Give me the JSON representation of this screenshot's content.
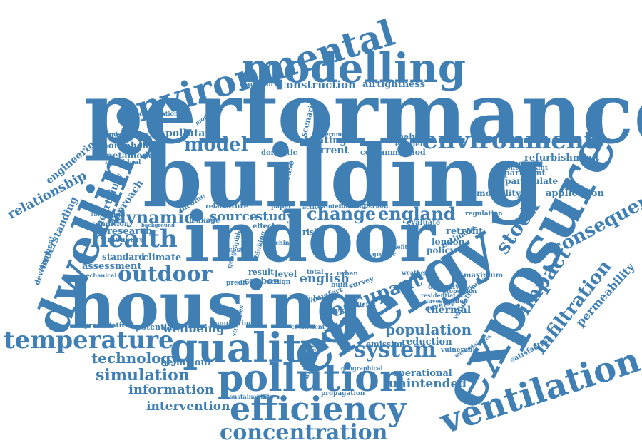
{
  "colors": {
    "word": "#3f7fb4",
    "background": "#ffffff"
  },
  "words": [
    "performance",
    "building",
    "indoor",
    "housing",
    "energy",
    "exposure",
    "environmental",
    "modelling",
    "dwelling",
    "quality",
    "pollution",
    "ventilation",
    "efficiency",
    "concentration",
    "temperature",
    "environment",
    "outdoor",
    "health",
    "system",
    "stock",
    "impact",
    "infiltration",
    "consequence",
    "change",
    "england",
    "occupant",
    "model",
    "dynamic",
    "population",
    "simulation",
    "technology",
    "information",
    "intervention",
    "unintended",
    "wellbeing",
    "relationship",
    "engineering",
    "understanding",
    "uncertainty",
    "approach",
    "permeability",
    "construction",
    "airtightness",
    "framework",
    "pollutant",
    "household",
    "metamodel",
    "individual",
    "research",
    "climate",
    "assessment",
    "standard",
    "source",
    "study",
    "future",
    "english",
    "carbon",
    "result",
    "physic",
    "reduction",
    "emission",
    "operational",
    "behaviour",
    "potential",
    "representative",
    "thermal",
    "retrofit",
    "london",
    "policy",
    "refurbishment",
    "apartment",
    "particulate",
    "mortality",
    "application",
    "regulation",
    "heating",
    "current",
    "contam",
    "method",
    "analysis",
    "efficient",
    "scenario",
    "domestic",
    "increase",
    "measure",
    "characteristic",
    "condition",
    "income",
    "leakage",
    "level",
    "development",
    "certification",
    "transmission",
    "complexity",
    "contaminant",
    "estimate",
    "evaluate",
    "geographic",
    "vulnerable",
    "satisfaction",
    "maximum",
    "validation",
    "envelope",
    "objective",
    "propagation",
    "sustainability",
    "monitoring",
    "strategies",
    "mechanical",
    "predict",
    "design",
    "comfort",
    "survey",
    "built",
    "urban",
    "risk",
    "effect",
    "related",
    "paper",
    "making",
    "person",
    "government",
    "winter",
    "total",
    "tightness",
    "geographical",
    "different",
    "coefficient",
    "active",
    "china",
    "modification",
    "cost",
    "thinking",
    "policies",
    "greater",
    "weather",
    "benefit",
    "proportion",
    "qualitative",
    "methodologies",
    "residential",
    "investigation",
    "background",
    "adventitious"
  ]
}
